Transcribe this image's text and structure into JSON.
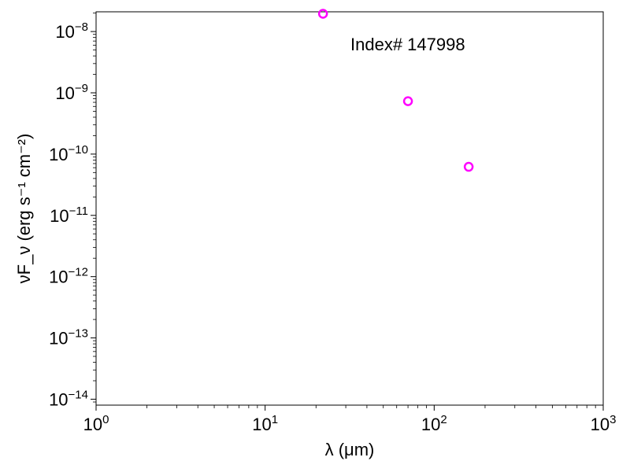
{
  "chart_data": {
    "type": "scatter",
    "title": "",
    "annotation": "Index# 147998",
    "xlabel": "λ (μm)",
    "ylabel": "νF_ν (erg s⁻¹ cm⁻²)",
    "x_scale": "log",
    "y_scale": "log",
    "xlim": [
      1,
      1000
    ],
    "ylim": [
      8e-15,
      2.1e-08
    ],
    "x_ticks": [
      {
        "value": 1,
        "mantissa": "10",
        "exp": "0"
      },
      {
        "value": 10,
        "mantissa": "10",
        "exp": "1"
      },
      {
        "value": 100,
        "mantissa": "10",
        "exp": "2"
      },
      {
        "value": 1000,
        "mantissa": "10",
        "exp": "3"
      }
    ],
    "y_ticks": [
      {
        "value": 1e-14,
        "mantissa": "10",
        "exp": "−14"
      },
      {
        "value": 1e-13,
        "mantissa": "10",
        "exp": "−13"
      },
      {
        "value": 1e-12,
        "mantissa": "10",
        "exp": "−12"
      },
      {
        "value": 1e-11,
        "mantissa": "10",
        "exp": "−11"
      },
      {
        "value": 1e-10,
        "mantissa": "10",
        "exp": "−10"
      },
      {
        "value": 1e-09,
        "mantissa": "10",
        "exp": "−9"
      },
      {
        "value": 1e-08,
        "mantissa": "10",
        "exp": "−8"
      }
    ],
    "grid": false,
    "series": [
      {
        "marker": "open-circle",
        "color": "#ff00ff",
        "points": [
          {
            "x": 22,
            "y": 1.95e-08
          },
          {
            "x": 70,
            "y": 7.3e-10
          },
          {
            "x": 160,
            "y": 6.2e-11
          }
        ]
      }
    ]
  }
}
